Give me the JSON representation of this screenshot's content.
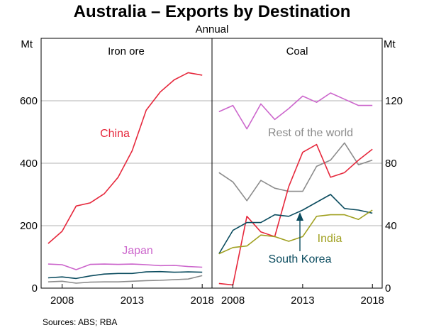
{
  "chart_data": {
    "type": "line",
    "title": "Australia – Exports by Destination",
    "subtitle": "Annual",
    "source": "Sources:   ABS; RBA",
    "units": {
      "left": "Mt",
      "right": "Mt"
    },
    "x_ticks": [
      "2008",
      "2013",
      "2018"
    ],
    "xlim": [
      2006.5,
      2018.7
    ],
    "panels": [
      {
        "title": "Iron ore",
        "axis": "left",
        "ylim": [
          0,
          800
        ],
        "y_ticks": [
          0,
          200,
          400,
          600
        ],
        "years": [
          2007,
          2008,
          2009,
          2010,
          2011,
          2012,
          2013,
          2014,
          2015,
          2016,
          2017,
          2018
        ],
        "series": [
          {
            "name": "China",
            "color": "#e6283c",
            "values": [
              143,
              182,
              263,
              273,
              302,
              355,
              440,
              570,
              628,
              667,
              690,
              682
            ]
          },
          {
            "name": "Japan",
            "color": "#cc66cc",
            "values": [
              77,
              75,
              59,
              76,
              77,
              76,
              77,
              75,
              72,
              73,
              69,
              67
            ]
          },
          {
            "name": "",
            "color": "#0b4c5f",
            "values": [
              33,
              36,
              31,
              39,
              45,
              47,
              47,
              52,
              53,
              51,
              52,
              51
            ]
          },
          {
            "name": "",
            "color": "#8c8c8c",
            "values": [
              20,
              22,
              16,
              19,
              20,
              20,
              22,
              24,
              25,
              27,
              29,
              40
            ]
          }
        ],
        "labels": [
          {
            "series": "China",
            "text": "China"
          },
          {
            "series": "Japan",
            "text": "Japan"
          }
        ]
      },
      {
        "title": "Coal",
        "axis": "right",
        "ylim": [
          0,
          160
        ],
        "y_ticks": [
          0,
          40,
          80,
          120
        ],
        "years": [
          2007,
          2008,
          2009,
          2010,
          2011,
          2012,
          2013,
          2014,
          2015,
          2016,
          2017,
          2018
        ],
        "series": [
          {
            "name": "Japan",
            "color": "#cc66cc",
            "values": [
              113,
              117,
              102,
              118,
              108,
              115,
              123,
              119,
              125,
              121,
              117,
              117
            ]
          },
          {
            "name": "Rest of the world",
            "color": "#8c8c8c",
            "values": [
              74,
              68,
              56,
              69,
              64,
              62,
              62,
              78,
              82,
              93,
              79,
              82
            ]
          },
          {
            "name": "China",
            "color": "#e6283c",
            "values": [
              3,
              2,
              46,
              36,
              33,
              65,
              87,
              92,
              71,
              74,
              82,
              89
            ]
          },
          {
            "name": "South Korea",
            "color": "#0b4c5f",
            "values": [
              22,
              37,
              42,
              42,
              47,
              46,
              50,
              55,
              60,
              51,
              50,
              48
            ]
          },
          {
            "name": "India",
            "color": "#a0a020",
            "values": [
              22,
              26,
              27,
              34,
              33,
              30,
              33,
              46,
              47,
              47,
              44,
              50
            ]
          }
        ],
        "labels": [
          {
            "series": "Rest of the world",
            "text": "Rest of the world"
          },
          {
            "series": "India",
            "text": "India"
          },
          {
            "series": "South Korea",
            "text": "South Korea"
          }
        ]
      }
    ]
  }
}
